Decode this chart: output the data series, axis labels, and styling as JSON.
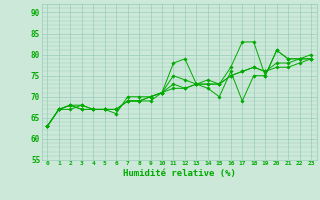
{
  "xlabel": "Humidité relative (%)",
  "xlim": [
    -0.5,
    23.5
  ],
  "ylim": [
    55,
    92
  ],
  "yticks": [
    55,
    60,
    65,
    70,
    75,
    80,
    85,
    90
  ],
  "xticks": [
    0,
    1,
    2,
    3,
    4,
    5,
    6,
    7,
    8,
    9,
    10,
    11,
    12,
    13,
    14,
    15,
    16,
    17,
    18,
    19,
    20,
    21,
    22,
    23
  ],
  "background_color": "#cce8d8",
  "grid_color": "#99ccbb",
  "line_color": "#00aa00",
  "lines": [
    [
      63,
      67,
      68,
      67,
      67,
      67,
      66,
      70,
      70,
      70,
      71,
      78,
      79,
      73,
      74,
      73,
      77,
      83,
      83,
      75,
      81,
      79,
      79,
      79
    ],
    [
      63,
      67,
      68,
      68,
      67,
      67,
      67,
      69,
      69,
      69,
      71,
      75,
      74,
      73,
      72,
      70,
      76,
      69,
      75,
      75,
      81,
      79,
      79,
      79
    ],
    [
      63,
      67,
      67,
      68,
      67,
      67,
      67,
      69,
      69,
      70,
      71,
      73,
      72,
      73,
      73,
      73,
      75,
      76,
      77,
      76,
      77,
      77,
      78,
      79
    ],
    [
      63,
      67,
      68,
      67,
      67,
      67,
      67,
      69,
      69,
      70,
      71,
      72,
      72,
      73,
      73,
      73,
      75,
      76,
      77,
      76,
      78,
      78,
      79,
      80
    ]
  ]
}
